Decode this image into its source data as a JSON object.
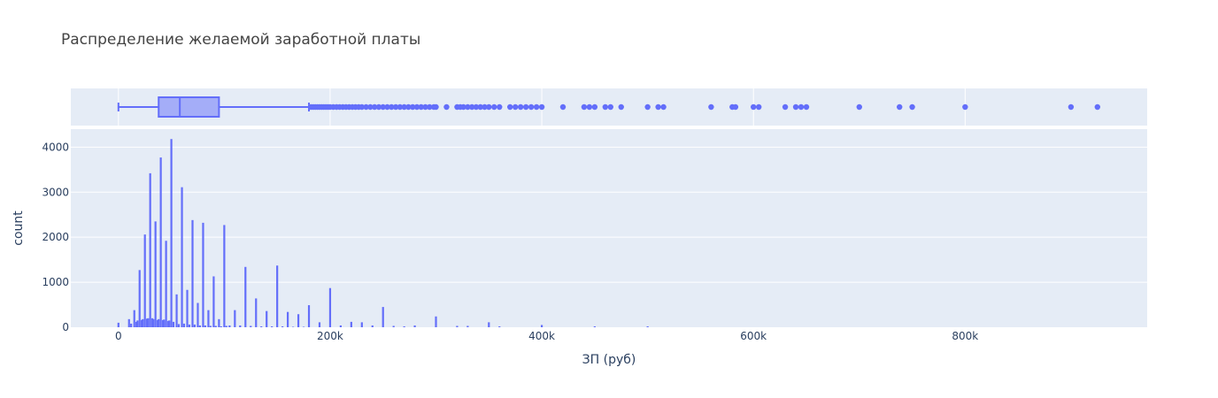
{
  "chart_data": {
    "type": "histogram_with_marginal_box",
    "title": "Распределение желаемой заработной платы",
    "xlabel": "ЗП (руб)",
    "ylabel": "count",
    "xlim": [
      -45000,
      972000
    ],
    "ylim": [
      0,
      4400
    ],
    "x_ticks": [
      0,
      200000,
      400000,
      600000,
      800000
    ],
    "x_tick_labels": [
      "0",
      "200k",
      "400k",
      "600k",
      "800k"
    ],
    "y_ticks": [
      0,
      1000,
      2000,
      3000,
      4000
    ],
    "y_tick_labels": [
      "0",
      "1000",
      "2000",
      "3000",
      "4000"
    ],
    "grid": true,
    "colors": {
      "series": "#636efa",
      "box_fill": "rgba(99,110,250,0.5)",
      "plot_bg": "#e5ecf6",
      "grid": "#ffffff",
      "text": "#2a3f5f",
      "title": "#444444"
    },
    "histogram": {
      "x": [
        0,
        10000,
        12000,
        15000,
        17000,
        18000,
        20000,
        22000,
        23000,
        25000,
        27000,
        28000,
        30000,
        32000,
        33000,
        35000,
        37000,
        38000,
        40000,
        42000,
        43000,
        45000,
        47000,
        48000,
        50000,
        52000,
        55000,
        57000,
        60000,
        62000,
        65000,
        67000,
        70000,
        72000,
        75000,
        77000,
        80000,
        82000,
        85000,
        87000,
        90000,
        92000,
        95000,
        97000,
        100000,
        102000,
        105000,
        110000,
        115000,
        120000,
        125000,
        130000,
        135000,
        140000,
        145000,
        150000,
        155000,
        160000,
        165000,
        170000,
        175000,
        180000,
        190000,
        200000,
        210000,
        220000,
        230000,
        240000,
        250000,
        260000,
        270000,
        280000,
        300000,
        320000,
        330000,
        350000,
        360000,
        400000,
        450000,
        500000
      ],
      "y": [
        100,
        180,
        80,
        380,
        120,
        150,
        1270,
        160,
        180,
        2060,
        190,
        200,
        3420,
        200,
        180,
        2350,
        160,
        180,
        3770,
        160,
        170,
        1920,
        140,
        150,
        4180,
        120,
        730,
        70,
        3110,
        80,
        830,
        60,
        2380,
        60,
        540,
        40,
        2320,
        40,
        380,
        30,
        1130,
        30,
        180,
        20,
        2270,
        30,
        40,
        380,
        40,
        1340,
        30,
        640,
        20,
        360,
        20,
        1370,
        20,
        340,
        10,
        290,
        10,
        490,
        110,
        870,
        40,
        120,
        110,
        40,
        450,
        30,
        20,
        40,
        240,
        30,
        30,
        110,
        20,
        50,
        20,
        20
      ]
    },
    "box": {
      "min": 0,
      "q1": 38000,
      "median": 58000,
      "q3": 95000,
      "upper_fence": 180000,
      "outliers": [
        182000,
        184000,
        186000,
        188000,
        190000,
        192000,
        194000,
        196000,
        198000,
        200000,
        203000,
        206000,
        209000,
        212000,
        215000,
        218000,
        221000,
        224000,
        227000,
        230000,
        234000,
        238000,
        242000,
        246000,
        250000,
        254000,
        258000,
        262000,
        266000,
        270000,
        274000,
        278000,
        282000,
        286000,
        290000,
        294000,
        298000,
        300000,
        310000,
        320000,
        323000,
        326000,
        330000,
        334000,
        338000,
        342000,
        346000,
        350000,
        355000,
        360000,
        370000,
        375000,
        380000,
        385000,
        390000,
        395000,
        400000,
        420000,
        440000,
        445000,
        450000,
        460000,
        465000,
        475000,
        500000,
        510000,
        515000,
        560000,
        580000,
        583000,
        600000,
        605000,
        630000,
        640000,
        645000,
        650000,
        700000,
        738000,
        750000,
        800000,
        900000,
        925000
      ]
    }
  }
}
